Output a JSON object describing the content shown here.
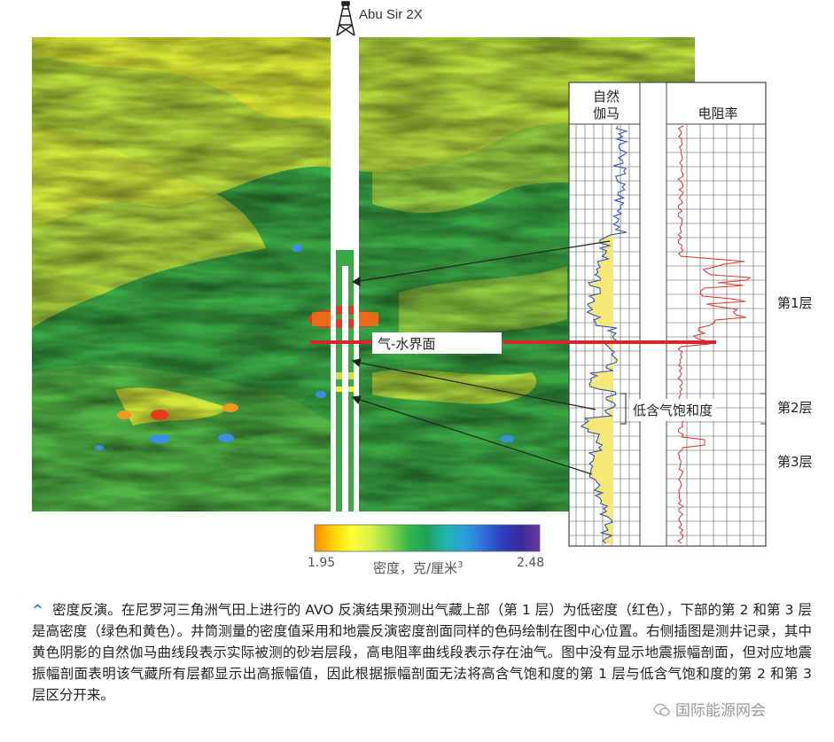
{
  "well": {
    "name": "Abu Sir 2X"
  },
  "log_panel": {
    "gamma_label": "自然\n伽马",
    "resistivity_label": "电阻率"
  },
  "annotations": {
    "gas_water_contact": "气-水界面",
    "low_gas_saturation": "低含气饱和度",
    "layer_1": "第1层",
    "layer_2": "第2层",
    "layer_3": "第3层"
  },
  "colorbar": {
    "min": "1.95",
    "max": "2.48",
    "label": "密度，克/厘米",
    "superscript": "3",
    "colors": [
      "#ff8a00",
      "#ffd400",
      "#ffff33",
      "#d8f24a",
      "#8fd94a",
      "#33b84a",
      "#1fa05a",
      "#22b5b0",
      "#2aa0d8",
      "#3170d8",
      "#2a3fc0",
      "#3a2a9a",
      "#6a3a9a"
    ]
  },
  "caption": {
    "text": "密度反演。在尼罗河三角洲气田上进行的 AVO 反演结果预测出气藏上部（第 1 层）为低密度（红色），下部的第 2 和第 3 层是高密度（绿色和黄色）。井筒测量的密度值采用和地震反演密度剖面同样的色码绘制在图中心位置。右侧插图是测井记录，其中黄色阴影的自然伽马曲线段表示实际被测的砂岩层段，高电阻率曲线段表示存在油气。图中没有显示地震振幅剖面，但对应地震振幅剖面表明该气藏所有层都显示出高振幅值，因此根据振幅剖面无法将高含气饱和度的第 1 层与低含气饱和度的第 2 和第 3 层区分开来。"
  },
  "watermark": {
    "text": "国际能源网会"
  }
}
